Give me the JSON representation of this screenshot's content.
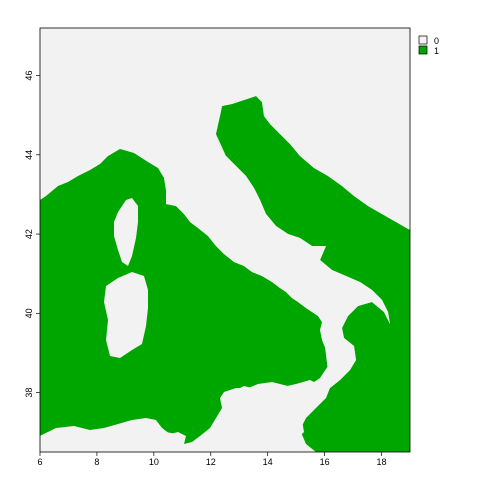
{
  "chart_data": {
    "type": "heatmap",
    "title": "",
    "xlabel": "",
    "ylabel": "",
    "xlim": [
      6,
      19
    ],
    "ylim": [
      36.5,
      47.2
    ],
    "x_ticks": [
      "6",
      "8",
      "10",
      "12",
      "14",
      "16",
      "18"
    ],
    "y_ticks": [
      "38",
      "40",
      "42",
      "44",
      "46"
    ],
    "grid": false,
    "legend_position": "top-right",
    "legend": [
      {
        "label": "0",
        "color": "#f2f2f2"
      },
      {
        "label": "1",
        "color": "#00a600"
      }
    ],
    "classes": {
      "background_value": "0",
      "land_value": "1"
    }
  },
  "colors": {
    "class_0": "#f2f2f2",
    "class_1": "#00a600"
  }
}
